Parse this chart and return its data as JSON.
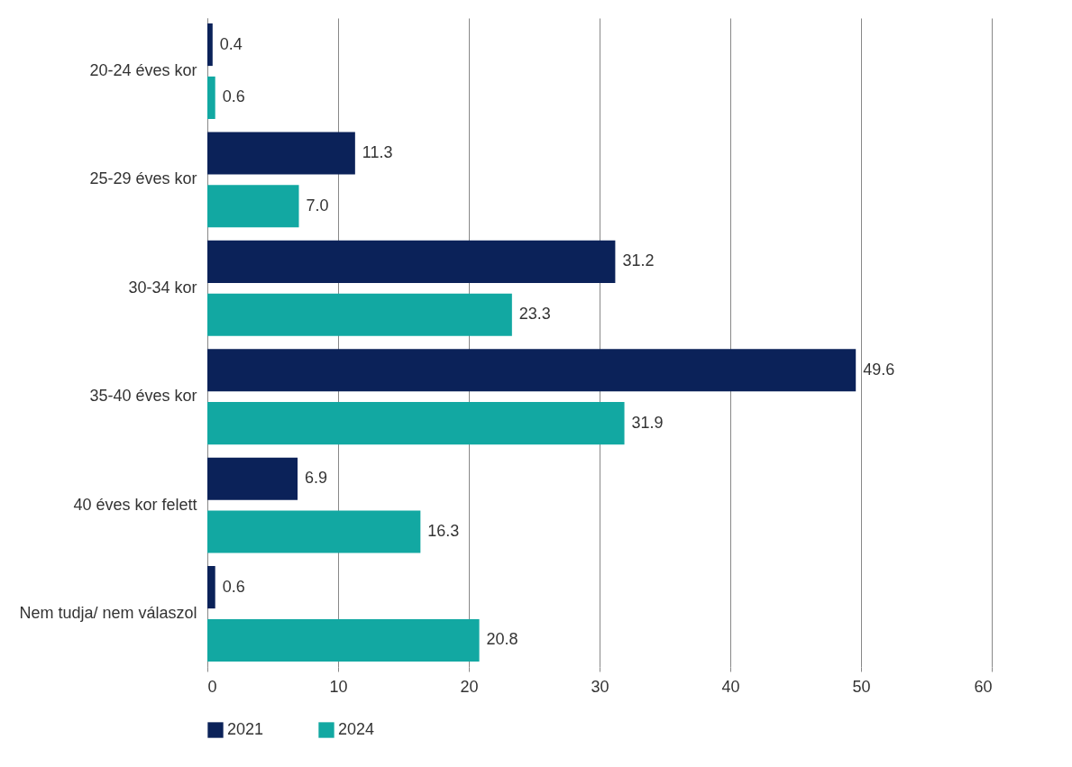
{
  "chart_data": {
    "type": "bar",
    "orientation": "horizontal",
    "categories": [
      "20-24 éves kor",
      "25-29 éves kor",
      "30-34 kor",
      "35-40 éves kor",
      "40 éves kor felett",
      "Nem tudja/ nem válaszol"
    ],
    "series": [
      {
        "name": "2021",
        "color": "#0b2259",
        "values": [
          0.4,
          11.3,
          31.2,
          49.6,
          6.9,
          0.6
        ],
        "value_labels": [
          "0.4",
          "11.3",
          "31.2",
          "49.6",
          "6.9",
          "0.6"
        ]
      },
      {
        "name": "2024",
        "color": "#12a8a2",
        "values": [
          0.6,
          7.0,
          23.3,
          31.9,
          16.3,
          20.8
        ],
        "value_labels": [
          "0.6",
          "7.0",
          "23.3",
          "31.9",
          "16.3",
          "20.8"
        ]
      }
    ],
    "xlim": [
      0,
      60
    ],
    "xticks": [
      0,
      10,
      20,
      30,
      40,
      50,
      60
    ],
    "grid": "x",
    "legend": "bottom"
  }
}
